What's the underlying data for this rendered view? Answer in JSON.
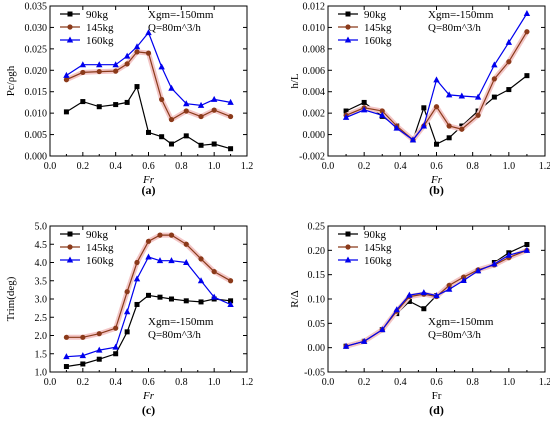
{
  "series_meta": [
    {
      "name": "90kg",
      "color": "#000000",
      "marker": "square"
    },
    {
      "name": "145kg",
      "color": "#8b3a1a",
      "marker": "circle"
    },
    {
      "name": "160kg",
      "color": "#0000ee",
      "marker": "triangle"
    }
  ],
  "chart_data": [
    {
      "type": "line",
      "caption": "(a)",
      "xlabel": "Fr",
      "xlabel_italic": true,
      "ylabel": "Pc/ρgh",
      "annotation": [
        "Xgm=-150mm",
        "Q=80m^3/h"
      ],
      "annotation_pos": "top-right",
      "legend": "top-left",
      "xlim": [
        0.0,
        1.2
      ],
      "xticks": [
        "0.0",
        "0.2",
        "0.4",
        "0.6",
        "0.8",
        "1.0",
        "1.2"
      ],
      "ylim": [
        0.0,
        0.035
      ],
      "yticks": [
        "0.000",
        "0.005",
        "0.010",
        "0.015",
        "0.020",
        "0.025",
        "0.030",
        "0.035"
      ],
      "series": [
        {
          "name": "90kg",
          "x": [
            0.1,
            0.2,
            0.3,
            0.4,
            0.47,
            0.53,
            0.6,
            0.68,
            0.74,
            0.83,
            0.92,
            1.0,
            1.1
          ],
          "y": [
            0.0103,
            0.0127,
            0.0115,
            0.012,
            0.0125,
            0.0162,
            0.0055,
            0.0045,
            0.0028,
            0.0047,
            0.0025,
            0.0028,
            0.0017
          ]
        },
        {
          "name": "145kg",
          "x": [
            0.1,
            0.2,
            0.3,
            0.4,
            0.47,
            0.53,
            0.6,
            0.68,
            0.74,
            0.83,
            0.92,
            1.0,
            1.1
          ],
          "y": [
            0.0178,
            0.0195,
            0.0197,
            0.0198,
            0.0215,
            0.0243,
            0.024,
            0.0132,
            0.0085,
            0.0105,
            0.0092,
            0.0107,
            0.0092
          ]
        },
        {
          "name": "160kg",
          "x": [
            0.1,
            0.2,
            0.3,
            0.4,
            0.47,
            0.53,
            0.6,
            0.68,
            0.74,
            0.83,
            0.92,
            1.0,
            1.1
          ],
          "y": [
            0.0188,
            0.0213,
            0.0213,
            0.0213,
            0.0233,
            0.0255,
            0.0288,
            0.0208,
            0.0158,
            0.0122,
            0.0118,
            0.0132,
            0.0125
          ]
        }
      ]
    },
    {
      "type": "line",
      "caption": "(b)",
      "xlabel": "Fr",
      "xlabel_italic": true,
      "ylabel": "h/L",
      "annotation": [
        "Xgm=-150mm",
        "Q=80m^3/h"
      ],
      "annotation_pos": "top-right",
      "legend": "top-left",
      "xlim": [
        0.0,
        1.2
      ],
      "xticks": [
        "0.0",
        "0.2",
        "0.4",
        "0.6",
        "0.8",
        "1.0",
        "1.2"
      ],
      "ylim": [
        -0.002,
        0.012
      ],
      "yticks": [
        "-0.002",
        "0.000",
        "0.002",
        "0.004",
        "0.006",
        "0.008",
        "0.010",
        "0.012"
      ],
      "series": [
        {
          "name": "90kg",
          "x": [
            0.1,
            0.2,
            0.3,
            0.38,
            0.47,
            0.53,
            0.6,
            0.67,
            0.74,
            0.83,
            0.92,
            1.0,
            1.1
          ],
          "y": [
            0.0022,
            0.003,
            0.0017,
            0.0008,
            -0.0005,
            0.0025,
            -0.0009,
            -0.0003,
            0.0008,
            0.0022,
            0.0035,
            0.0042,
            0.0055
          ]
        },
        {
          "name": "145kg",
          "x": [
            0.1,
            0.2,
            0.3,
            0.38,
            0.47,
            0.53,
            0.6,
            0.67,
            0.74,
            0.83,
            0.92,
            1.0,
            1.1
          ],
          "y": [
            0.0018,
            0.0025,
            0.0022,
            0.0008,
            -0.0005,
            0.0008,
            0.0026,
            0.0008,
            0.0005,
            0.0018,
            0.0052,
            0.0068,
            0.0096
          ]
        },
        {
          "name": "160kg",
          "x": [
            0.1,
            0.2,
            0.3,
            0.38,
            0.47,
            0.53,
            0.6,
            0.67,
            0.74,
            0.83,
            0.92,
            1.0,
            1.1
          ],
          "y": [
            0.0016,
            0.0023,
            0.0018,
            0.0006,
            -0.0005,
            0.0008,
            0.0051,
            0.0037,
            0.0036,
            0.0035,
            0.0065,
            0.0086,
            0.0113
          ]
        }
      ]
    },
    {
      "type": "line",
      "caption": "(c)",
      "xlabel": "Fr",
      "xlabel_italic": true,
      "ylabel": "Trim(deg)",
      "annotation": [
        "Xgm=-150mm",
        "Q=80m^3/h"
      ],
      "annotation_pos": "bottom-right",
      "legend": "top-left",
      "xlim": [
        0.0,
        1.2
      ],
      "xticks": [
        "0.0",
        "0.2",
        "0.4",
        "0.6",
        "0.8",
        "1.0",
        "1.2"
      ],
      "ylim": [
        1.0,
        5.0
      ],
      "yticks": [
        "1.0",
        "1.5",
        "2.0",
        "2.5",
        "3.0",
        "3.5",
        "4.0",
        "4.5",
        "5.0"
      ],
      "series": [
        {
          "name": "90kg",
          "x": [
            0.1,
            0.2,
            0.3,
            0.4,
            0.47,
            0.53,
            0.6,
            0.67,
            0.74,
            0.83,
            0.92,
            1.0,
            1.1
          ],
          "y": [
            1.15,
            1.22,
            1.35,
            1.5,
            2.1,
            2.85,
            3.1,
            3.05,
            3.0,
            2.95,
            2.92,
            3.0,
            2.95
          ]
        },
        {
          "name": "145kg",
          "x": [
            0.1,
            0.2,
            0.3,
            0.4,
            0.47,
            0.53,
            0.6,
            0.67,
            0.74,
            0.83,
            0.92,
            1.0,
            1.1
          ],
          "y": [
            1.95,
            1.95,
            2.05,
            2.2,
            3.2,
            4.0,
            4.58,
            4.75,
            4.75,
            4.5,
            4.1,
            3.75,
            3.5
          ]
        },
        {
          "name": "160kg",
          "x": [
            0.1,
            0.2,
            0.3,
            0.4,
            0.47,
            0.53,
            0.6,
            0.67,
            0.74,
            0.83,
            0.92,
            1.0,
            1.1
          ],
          "y": [
            1.42,
            1.45,
            1.6,
            1.68,
            2.65,
            3.55,
            4.15,
            4.05,
            4.05,
            4.0,
            3.5,
            3.05,
            2.85
          ]
        }
      ]
    },
    {
      "type": "line",
      "caption": "(d)",
      "xlabel": "Fr",
      "xlabel_italic": false,
      "ylabel": "R/Δ",
      "annotation": [
        "Xgm=-150mm",
        "Q=80m^3/h"
      ],
      "annotation_pos": "bottom-right",
      "legend": "top-left",
      "xlim": [
        0.0,
        1.2
      ],
      "xticks": [
        "0.0",
        "0.2",
        "0.4",
        "0.6",
        "0.8",
        "1.0",
        "1.2"
      ],
      "ylim": [
        -0.05,
        0.25
      ],
      "yticks": [
        "-0.05",
        "0.00",
        "0.05",
        "0.10",
        "0.15",
        "0.20",
        "0.25"
      ],
      "series": [
        {
          "name": "90kg",
          "x": [
            0.1,
            0.2,
            0.3,
            0.38,
            0.45,
            0.53,
            0.6,
            0.67,
            0.75,
            0.83,
            0.92,
            1.0,
            1.1
          ],
          "y": [
            0.003,
            0.013,
            0.037,
            0.07,
            0.095,
            0.08,
            0.107,
            0.125,
            0.14,
            0.158,
            0.175,
            0.195,
            0.212
          ]
        },
        {
          "name": "145kg",
          "x": [
            0.1,
            0.2,
            0.3,
            0.38,
            0.45,
            0.53,
            0.6,
            0.67,
            0.75,
            0.83,
            0.92,
            1.0,
            1.1
          ],
          "y": [
            0.003,
            0.013,
            0.037,
            0.075,
            0.105,
            0.11,
            0.105,
            0.128,
            0.145,
            0.16,
            0.17,
            0.185,
            0.2
          ]
        },
        {
          "name": "160kg",
          "x": [
            0.1,
            0.2,
            0.3,
            0.38,
            0.45,
            0.53,
            0.6,
            0.67,
            0.75,
            0.83,
            0.92,
            1.0,
            1.1
          ],
          "y": [
            0.003,
            0.013,
            0.037,
            0.078,
            0.108,
            0.113,
            0.107,
            0.12,
            0.138,
            0.158,
            0.172,
            0.19,
            0.2
          ]
        }
      ]
    }
  ]
}
